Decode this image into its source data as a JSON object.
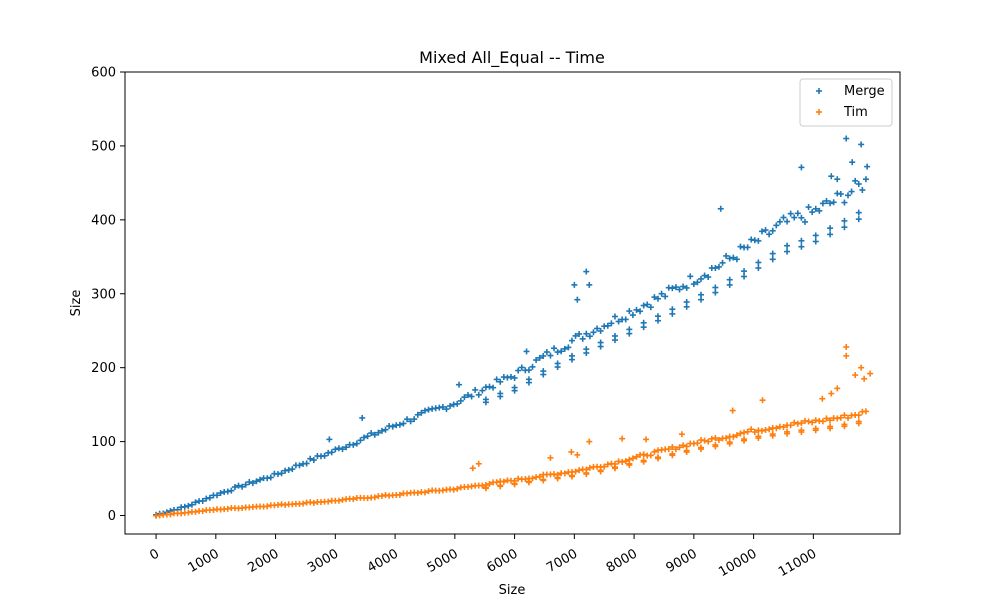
{
  "chart_data": {
    "type": "scatter",
    "title": "Mixed All_Equal -- Time",
    "xlabel": "Size",
    "ylabel": "Size",
    "xlim": [
      -520,
      12450
    ],
    "ylim": [
      -25,
      600
    ],
    "x_ticks": [
      0,
      1000,
      2000,
      3000,
      4000,
      5000,
      6000,
      7000,
      8000,
      9000,
      10000,
      11000
    ],
    "x_tick_labels": [
      "0",
      "1000",
      "2000",
      "3000",
      "4000",
      "5000",
      "6000",
      "7000",
      "8000",
      "9000",
      "10000",
      "11000"
    ],
    "y_ticks": [
      0,
      100,
      200,
      300,
      400,
      500,
      600
    ],
    "y_tick_labels": [
      "0",
      "100",
      "200",
      "300",
      "400",
      "500",
      "600"
    ],
    "x_tick_rotation": 30,
    "marker": "+",
    "grid": false,
    "legend_position": "upper-right",
    "series": [
      {
        "name": "Merge",
        "color": "#1f77b4",
        "points": [
          [
            0,
            1
          ],
          [
            500,
            12
          ],
          [
            1000,
            28
          ],
          [
            1500,
            42
          ],
          [
            2000,
            55
          ],
          [
            2500,
            72
          ],
          [
            3000,
            88
          ],
          [
            3500,
            105
          ],
          [
            4000,
            122
          ],
          [
            4500,
            138
          ],
          [
            5000,
            152
          ],
          [
            5500,
            172
          ],
          [
            6000,
            190
          ],
          [
            6500,
            215
          ],
          [
            7000,
            238
          ],
          [
            7500,
            258
          ],
          [
            8000,
            278
          ],
          [
            8500,
            298
          ],
          [
            9000,
            320
          ],
          [
            9500,
            342
          ],
          [
            10000,
            368
          ],
          [
            10500,
            395
          ],
          [
            11000,
            410
          ],
          [
            11500,
            432
          ],
          [
            11900,
            452
          ]
        ],
        "outliers": [
          [
            2900,
            103
          ],
          [
            3450,
            132
          ],
          [
            5070,
            177
          ],
          [
            6200,
            222
          ],
          [
            7000,
            312
          ],
          [
            7050,
            292
          ],
          [
            7200,
            330
          ],
          [
            7250,
            312
          ],
          [
            9450,
            415
          ],
          [
            10800,
            471
          ],
          [
            11300,
            459
          ],
          [
            11400,
            455
          ],
          [
            11550,
            510
          ],
          [
            11650,
            478
          ],
          [
            11800,
            502
          ],
          [
            11900,
            472
          ]
        ]
      },
      {
        "name": "Tim",
        "color": "#ff7f0e",
        "points": [
          [
            0,
            0
          ],
          [
            500,
            4
          ],
          [
            1000,
            8
          ],
          [
            1500,
            11
          ],
          [
            2000,
            14
          ],
          [
            2500,
            17
          ],
          [
            3000,
            20
          ],
          [
            3500,
            24
          ],
          [
            4000,
            28
          ],
          [
            4500,
            32
          ],
          [
            5000,
            36
          ],
          [
            5500,
            42
          ],
          [
            6000,
            48
          ],
          [
            6500,
            54
          ],
          [
            7000,
            60
          ],
          [
            7500,
            68
          ],
          [
            8000,
            78
          ],
          [
            8500,
            88
          ],
          [
            9000,
            98
          ],
          [
            9500,
            106
          ],
          [
            10000,
            115
          ],
          [
            10500,
            122
          ],
          [
            11000,
            127
          ],
          [
            11500,
            133
          ],
          [
            11900,
            140
          ]
        ],
        "outliers": [
          [
            5300,
            64
          ],
          [
            5400,
            70
          ],
          [
            6600,
            78
          ],
          [
            6950,
            86
          ],
          [
            7050,
            82
          ],
          [
            7250,
            100
          ],
          [
            7800,
            104
          ],
          [
            8200,
            103
          ],
          [
            8800,
            110
          ],
          [
            9650,
            142
          ],
          [
            10150,
            156
          ],
          [
            11150,
            158
          ],
          [
            11300,
            165
          ],
          [
            11400,
            172
          ],
          [
            11550,
            228
          ],
          [
            11550,
            216
          ],
          [
            11700,
            190
          ],
          [
            11800,
            200
          ],
          [
            11850,
            185
          ],
          [
            11950,
            192
          ]
        ]
      }
    ]
  }
}
